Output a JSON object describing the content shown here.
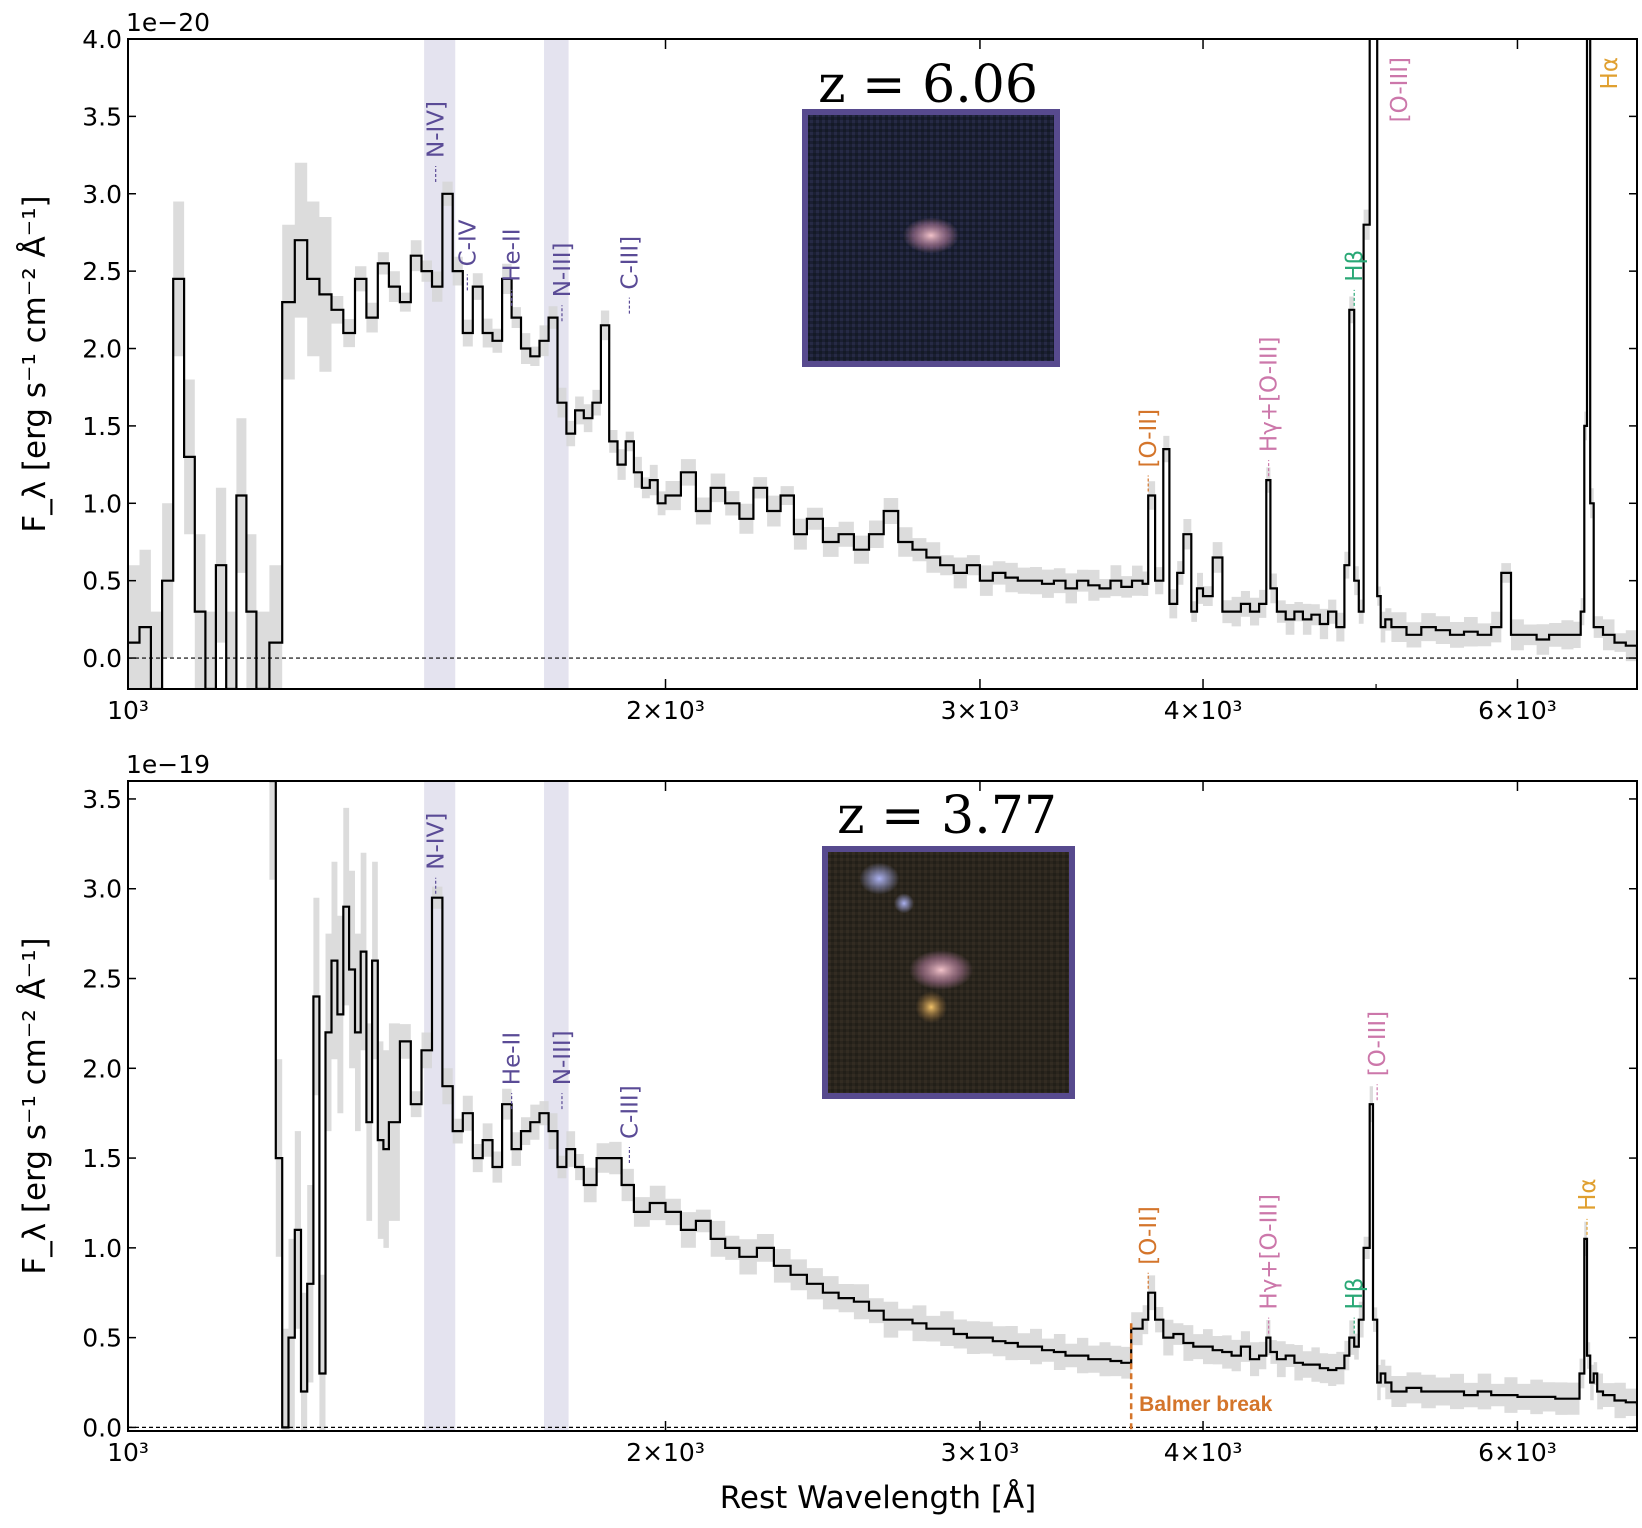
{
  "chart_data": [
    {
      "type": "line",
      "title": "",
      "redshift_label": "z = 6.06",
      "xlabel": "",
      "ylabel": "F_λ [erg s⁻¹ cm⁻² Å⁻¹]",
      "y_exponent": "1e−20",
      "xscale": "log",
      "xlim": [
        1000,
        7000
      ],
      "ylim": [
        -0.2,
        4.0
      ],
      "x_ticks": [
        {
          "value": 1000,
          "label": "10³"
        },
        {
          "value": 2000,
          "label": "2×10³"
        },
        {
          "value": 3000,
          "label": "3×10³"
        },
        {
          "value": 4000,
          "label": "4×10³"
        },
        {
          "value": 6000,
          "label": "6×10³"
        }
      ],
      "y_ticks": [
        {
          "value": 0.0,
          "label": "0.0"
        },
        {
          "value": 0.5,
          "label": "0.5"
        },
        {
          "value": 1.0,
          "label": "1.0"
        },
        {
          "value": 1.5,
          "label": "1.5"
        },
        {
          "value": 2.0,
          "label": "2.0"
        },
        {
          "value": 2.5,
          "label": "2.5"
        },
        {
          "value": 3.0,
          "label": "3.0"
        },
        {
          "value": 3.5,
          "label": "3.5"
        },
        {
          "value": 4.0,
          "label": "4.0"
        }
      ],
      "zero_line": 0.0,
      "shaded_bands": [
        [
          1465,
          1525
        ],
        [
          1710,
          1765
        ]
      ],
      "spectrum": {
        "x": [
          1000,
          1015,
          1030,
          1045,
          1060,
          1075,
          1090,
          1105,
          1120,
          1135,
          1150,
          1165,
          1180,
          1200,
          1220,
          1240,
          1260,
          1280,
          1300,
          1320,
          1340,
          1360,
          1380,
          1400,
          1420,
          1440,
          1460,
          1480,
          1500,
          1520,
          1540,
          1560,
          1580,
          1600,
          1620,
          1640,
          1660,
          1680,
          1700,
          1720,
          1740,
          1760,
          1780,
          1800,
          1820,
          1840,
          1860,
          1880,
          1900,
          1920,
          1940,
          1960,
          1980,
          2000,
          2040,
          2080,
          2120,
          2160,
          2200,
          2240,
          2280,
          2320,
          2360,
          2400,
          2450,
          2500,
          2550,
          2600,
          2650,
          2700,
          2750,
          2800,
          2850,
          2900,
          2950,
          3000,
          3050,
          3100,
          3150,
          3200,
          3250,
          3300,
          3350,
          3400,
          3450,
          3500,
          3550,
          3600,
          3650,
          3700,
          3727,
          3760,
          3800,
          3830,
          3869,
          3900,
          3940,
          3969,
          4000,
          4050,
          4101,
          4150,
          4200,
          4250,
          4300,
          4340,
          4363,
          4400,
          4450,
          4500,
          4550,
          4600,
          4650,
          4700,
          4750,
          4800,
          4830,
          4861,
          4890,
          4920,
          4959,
          4980,
          5007,
          5030,
          5060,
          5100,
          5200,
          5300,
          5400,
          5500,
          5600,
          5700,
          5800,
          5876,
          5950,
          6050,
          6150,
          6250,
          6350,
          6450,
          6510,
          6540,
          6563,
          6590,
          6620,
          6700,
          6800,
          6900,
          7000
        ],
        "y": [
          0.1,
          0.2,
          -0.2,
          0.5,
          2.45,
          1.3,
          0.3,
          -0.2,
          0.6,
          -0.2,
          1.05,
          0.3,
          -0.2,
          0.1,
          2.3,
          2.7,
          2.45,
          2.35,
          2.25,
          2.1,
          2.45,
          2.2,
          2.55,
          2.4,
          2.3,
          2.6,
          2.5,
          2.4,
          3.0,
          2.5,
          2.1,
          2.4,
          2.1,
          2.05,
          2.45,
          2.2,
          2.0,
          1.95,
          2.05,
          2.2,
          1.65,
          1.45,
          1.6,
          1.55,
          1.65,
          2.15,
          1.4,
          1.25,
          1.4,
          1.2,
          1.1,
          1.15,
          1.0,
          1.05,
          1.2,
          0.95,
          1.1,
          1.0,
          0.9,
          1.1,
          0.95,
          1.05,
          0.8,
          0.9,
          0.75,
          0.8,
          0.7,
          0.8,
          0.95,
          0.75,
          0.7,
          0.65,
          0.6,
          0.55,
          0.6,
          0.5,
          0.55,
          0.52,
          0.5,
          0.5,
          0.48,
          0.5,
          0.45,
          0.5,
          0.47,
          0.45,
          0.5,
          0.46,
          0.5,
          0.48,
          1.05,
          0.5,
          1.35,
          0.35,
          0.55,
          0.8,
          0.3,
          0.45,
          0.4,
          0.65,
          0.3,
          0.3,
          0.35,
          0.3,
          0.35,
          1.15,
          0.45,
          0.3,
          0.25,
          0.3,
          0.25,
          0.28,
          0.22,
          0.3,
          0.2,
          0.6,
          2.25,
          0.5,
          0.3,
          2.8,
          4.2,
          4.2,
          0.4,
          0.2,
          0.25,
          0.2,
          0.15,
          0.2,
          0.18,
          0.15,
          0.17,
          0.15,
          0.2,
          0.55,
          0.15,
          0.15,
          0.12,
          0.15,
          0.15,
          0.15,
          0.3,
          1.5,
          4.2,
          1.0,
          0.2,
          0.15,
          0.1,
          0.08,
          0.02
        ]
      },
      "emission_lines": [
        {
          "name": "N-IV]",
          "wavelength": 1487,
          "color": "#5a4b96",
          "flux": 3.05
        },
        {
          "name": "C-IV",
          "wavelength": 1549,
          "color": "#5a4b96",
          "flux": 2.35
        },
        {
          "name": "He-II",
          "wavelength": 1640,
          "color": "#5a4b96",
          "flux": 2.25
        },
        {
          "name": "N-III]",
          "wavelength": 1750,
          "color": "#5a4b96",
          "flux": 2.15
        },
        {
          "name": "C-III]",
          "wavelength": 1909,
          "color": "#5a4b96",
          "flux": 2.2
        },
        {
          "name": "[O-II]",
          "wavelength": 3727,
          "color": "#d4752b",
          "flux": 1.05
        },
        {
          "name": "Hγ+[O-III]",
          "wavelength": 4353,
          "color": "#cc77aa",
          "flux": 1.15
        },
        {
          "name": "Hβ",
          "wavelength": 4861,
          "color": "#2aa876",
          "flux": 2.25
        },
        {
          "name": "[O-III]",
          "wavelength": 5007,
          "color": "#cc77aa",
          "flux": 4.0
        },
        {
          "name": "Hα",
          "wavelength": 6563,
          "color": "#e0a030",
          "flux": 4.0
        }
      ]
    },
    {
      "type": "line",
      "title": "",
      "redshift_label": "z = 3.77",
      "xlabel": "Rest Wavelength [Å]",
      "ylabel": "F_λ [erg s⁻¹ cm⁻² Å⁻¹]",
      "y_exponent": "1e−19",
      "xscale": "log",
      "xlim": [
        1000,
        7000
      ],
      "ylim": [
        -0.02,
        3.6
      ],
      "x_ticks": [
        {
          "value": 1000,
          "label": "10³"
        },
        {
          "value": 2000,
          "label": "2×10³"
        },
        {
          "value": 3000,
          "label": "3×10³"
        },
        {
          "value": 4000,
          "label": "4×10³"
        },
        {
          "value": 6000,
          "label": "6×10³"
        }
      ],
      "y_ticks": [
        {
          "value": 0.0,
          "label": "0.0"
        },
        {
          "value": 0.5,
          "label": "0.5"
        },
        {
          "value": 1.0,
          "label": "1.0"
        },
        {
          "value": 1.5,
          "label": "1.5"
        },
        {
          "value": 2.0,
          "label": "2.0"
        },
        {
          "value": 2.5,
          "label": "2.5"
        },
        {
          "value": 3.0,
          "label": "3.0"
        },
        {
          "value": 3.5,
          "label": "3.5"
        }
      ],
      "zero_line": 0.0,
      "shaded_bands": [
        [
          1465,
          1525
        ],
        [
          1710,
          1765
        ]
      ],
      "balmer_break": {
        "label": "Balmer break",
        "wavelength": 3646
      },
      "spectrum": {
        "x": [
          1200,
          1210,
          1220,
          1230,
          1240,
          1250,
          1260,
          1270,
          1280,
          1290,
          1300,
          1310,
          1320,
          1330,
          1340,
          1350,
          1360,
          1370,
          1380,
          1390,
          1400,
          1420,
          1440,
          1460,
          1480,
          1500,
          1520,
          1540,
          1560,
          1580,
          1600,
          1620,
          1640,
          1660,
          1680,
          1700,
          1720,
          1740,
          1760,
          1780,
          1800,
          1830,
          1860,
          1890,
          1920,
          1960,
          2000,
          2040,
          2080,
          2120,
          2160,
          2200,
          2250,
          2300,
          2350,
          2400,
          2450,
          2500,
          2550,
          2600,
          2650,
          2700,
          2750,
          2800,
          2850,
          2900,
          2950,
          3000,
          3050,
          3100,
          3150,
          3200,
          3250,
          3300,
          3350,
          3400,
          3450,
          3500,
          3550,
          3600,
          3646,
          3700,
          3727,
          3760,
          3800,
          3850,
          3900,
          3950,
          4000,
          4050,
          4100,
          4150,
          4200,
          4250,
          4300,
          4340,
          4363,
          4400,
          4450,
          4500,
          4550,
          4600,
          4650,
          4700,
          4750,
          4800,
          4830,
          4861,
          4890,
          4920,
          4959,
          4980,
          5007,
          5030,
          5060,
          5100,
          5200,
          5300,
          5400,
          5500,
          5600,
          5700,
          5800,
          5900,
          6000,
          6100,
          6200,
          6300,
          6400,
          6500,
          6540,
          6563,
          6590,
          6620,
          6650,
          6700,
          6800,
          6900,
          7000
        ],
        "y": [
          3.6,
          1.5,
          0.0,
          0.5,
          1.1,
          0.2,
          0.8,
          2.4,
          0.3,
          2.2,
          2.6,
          2.3,
          2.9,
          2.55,
          2.2,
          2.65,
          1.7,
          2.6,
          1.6,
          1.55,
          1.7,
          2.15,
          1.8,
          2.1,
          2.95,
          1.9,
          1.65,
          1.75,
          1.5,
          1.6,
          1.45,
          1.8,
          1.55,
          1.65,
          1.7,
          1.75,
          1.65,
          1.45,
          1.55,
          1.45,
          1.35,
          1.5,
          1.5,
          1.35,
          1.2,
          1.25,
          1.2,
          1.1,
          1.15,
          1.05,
          1.0,
          0.95,
          1.0,
          0.9,
          0.85,
          0.8,
          0.75,
          0.72,
          0.7,
          0.65,
          0.6,
          0.6,
          0.58,
          0.55,
          0.55,
          0.52,
          0.5,
          0.5,
          0.48,
          0.47,
          0.45,
          0.45,
          0.43,
          0.42,
          0.4,
          0.4,
          0.38,
          0.38,
          0.37,
          0.36,
          0.55,
          0.6,
          0.75,
          0.6,
          0.5,
          0.52,
          0.47,
          0.45,
          0.45,
          0.43,
          0.42,
          0.4,
          0.45,
          0.38,
          0.4,
          0.5,
          0.42,
          0.38,
          0.4,
          0.36,
          0.35,
          0.35,
          0.33,
          0.32,
          0.33,
          0.4,
          0.5,
          0.45,
          0.6,
          1.0,
          1.8,
          0.6,
          0.25,
          0.3,
          0.25,
          0.2,
          0.22,
          0.2,
          0.2,
          0.2,
          0.18,
          0.2,
          0.18,
          0.18,
          0.17,
          0.17,
          0.17,
          0.16,
          0.16,
          0.3,
          1.05,
          0.4,
          0.25,
          0.3,
          0.2,
          0.18,
          0.15,
          0.14,
          0.13
        ]
      },
      "emission_lines": [
        {
          "name": "N-IV]",
          "wavelength": 1487,
          "color": "#5a4b96",
          "flux": 2.95
        },
        {
          "name": "He-II",
          "wavelength": 1640,
          "color": "#5a4b96",
          "flux": 1.75
        },
        {
          "name": "N-III]",
          "wavelength": 1750,
          "color": "#5a4b96",
          "flux": 1.75
        },
        {
          "name": "C-III]",
          "wavelength": 1909,
          "color": "#5a4b96",
          "flux": 1.45
        },
        {
          "name": "[O-II]",
          "wavelength": 3727,
          "color": "#d4752b",
          "flux": 0.75
        },
        {
          "name": "Hγ+[O-III]",
          "wavelength": 4353,
          "color": "#cc77aa",
          "flux": 0.5
        },
        {
          "name": "Hβ",
          "wavelength": 4861,
          "color": "#2aa876",
          "flux": 0.5
        },
        {
          "name": "[O-III]",
          "wavelength": 5007,
          "color": "#cc77aa",
          "flux": 1.8
        },
        {
          "name": "Hα",
          "wavelength": 6563,
          "color": "#e0a030",
          "flux": 1.05
        }
      ]
    }
  ],
  "colors": {
    "band": "#e4e3ef",
    "error": "#d6d6d6",
    "line": "#000000",
    "inset_border": "#574a8e"
  }
}
